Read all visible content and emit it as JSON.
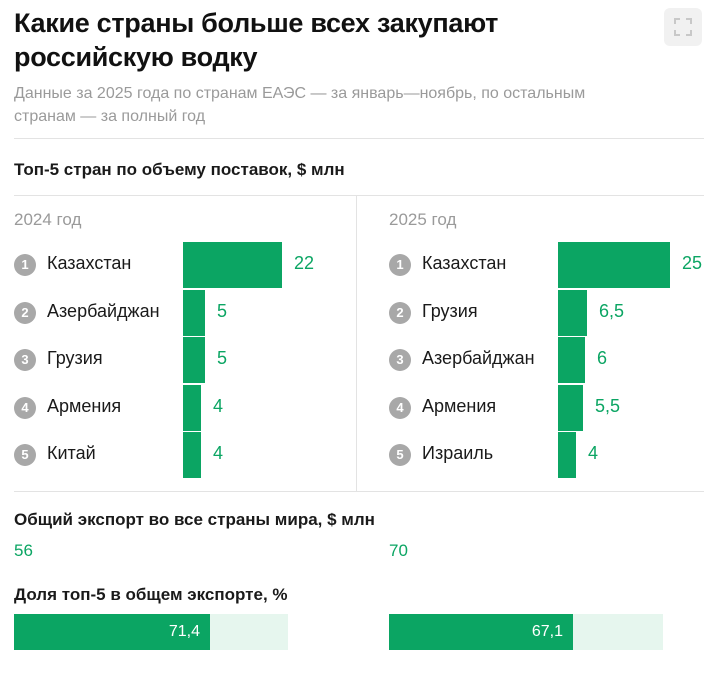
{
  "header": {
    "title": "Какие страны больше всех закупают российскую водку",
    "subtitle": "Данные за 2025 года по странам ЕАЭС — за январь—ноябрь, по остальным странам — за полный год"
  },
  "colors": {
    "accent": "#0ba563",
    "accent_light": "#e6f6ee",
    "rank_badge": "#a8a8a8",
    "muted": "#9a9a9a"
  },
  "chart_data": [
    {
      "type": "bar",
      "title": "Топ-5 стран по объему поставок, $ млн",
      "panels": [
        {
          "year": "2024 год",
          "items": [
            {
              "rank": "1",
              "country": "Казахстан",
              "value": 22,
              "label": "22"
            },
            {
              "rank": "2",
              "country": "Азербайджан",
              "value": 5,
              "label": "5"
            },
            {
              "rank": "3",
              "country": "Грузия",
              "value": 5,
              "label": "5"
            },
            {
              "rank": "4",
              "country": "Армения",
              "value": 4,
              "label": "4"
            },
            {
              "rank": "5",
              "country": "Китай",
              "value": 4,
              "label": "4"
            }
          ]
        },
        {
          "year": "2025 год",
          "items": [
            {
              "rank": "1",
              "country": "Казахстан",
              "value": 25,
              "label": "25"
            },
            {
              "rank": "2",
              "country": "Грузия",
              "value": 6.5,
              "label": "6,5"
            },
            {
              "rank": "3",
              "country": "Азербайджан",
              "value": 6,
              "label": "6"
            },
            {
              "rank": "4",
              "country": "Армения",
              "value": 5.5,
              "label": "5,5"
            },
            {
              "rank": "5",
              "country": "Израиль",
              "value": 4,
              "label": "4"
            }
          ]
        }
      ]
    },
    {
      "type": "table",
      "title": "Общий экспорт во все страны мира, $ млн",
      "values": [
        {
          "value": 56,
          "label": "56"
        },
        {
          "value": 70,
          "label": "70"
        }
      ]
    },
    {
      "type": "bar",
      "title": "Доля топ-5 в общем экспорте, %",
      "values": [
        {
          "value": 71.4,
          "label": "71,4"
        },
        {
          "value": 67.1,
          "label": "67,1"
        }
      ],
      "xlim": [
        0,
        100
      ]
    }
  ]
}
